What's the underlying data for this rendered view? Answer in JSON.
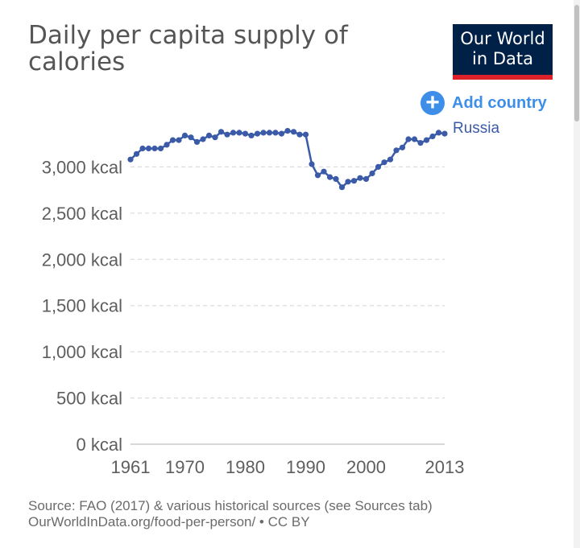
{
  "header": {
    "title": "Daily per capita supply of calories",
    "logo_line1": "Our World",
    "logo_line2": "in Data"
  },
  "controls": {
    "add_country_label": "Add country",
    "add_icon": "plus-circle-icon"
  },
  "footer": {
    "source_line": "Source: FAO (2017) & various historical sources (see Sources tab)",
    "url_line": "OurWorldInData.org/food-per-person/ • CC BY"
  },
  "colors": {
    "series": "#3b5ba8",
    "accent": "#3c8ee8",
    "logo_bg": "#002147",
    "logo_stripe": "#dd2129",
    "grid": "#dddddd"
  },
  "chart_data": {
    "type": "line",
    "title": "Daily per capita supply of calories",
    "xlabel": "",
    "ylabel": "",
    "xlim": [
      1961,
      2013
    ],
    "ylim": [
      0,
      3500
    ],
    "x_ticks": [
      {
        "value": 1961,
        "label": "1961"
      },
      {
        "value": 1970,
        "label": "1970"
      },
      {
        "value": 1980,
        "label": "1980"
      },
      {
        "value": 1990,
        "label": "1990"
      },
      {
        "value": 2000,
        "label": "2000"
      },
      {
        "value": 2013,
        "label": "2013"
      }
    ],
    "y_ticks": [
      {
        "value": 0,
        "label": "0 kcal"
      },
      {
        "value": 500,
        "label": "500 kcal"
      },
      {
        "value": 1000,
        "label": "1,000 kcal"
      },
      {
        "value": 1500,
        "label": "1,500 kcal"
      },
      {
        "value": 2000,
        "label": "2,000 kcal"
      },
      {
        "value": 2500,
        "label": "2,500 kcal"
      },
      {
        "value": 3000,
        "label": "3,000 kcal"
      }
    ],
    "grid": "horizontal-dashed",
    "legend": "end-of-line",
    "series": [
      {
        "name": "Russia",
        "x": [
          1961,
          1962,
          1963,
          1964,
          1965,
          1966,
          1967,
          1968,
          1969,
          1970,
          1971,
          1972,
          1973,
          1974,
          1975,
          1976,
          1977,
          1978,
          1979,
          1980,
          1981,
          1982,
          1983,
          1984,
          1985,
          1986,
          1987,
          1988,
          1989,
          1990,
          1991,
          1992,
          1993,
          1994,
          1995,
          1996,
          1997,
          1998,
          1999,
          2000,
          2001,
          2002,
          2003,
          2004,
          2005,
          2006,
          2007,
          2008,
          2009,
          2010,
          2011,
          2012,
          2013
        ],
        "values": [
          3080,
          3140,
          3200,
          3200,
          3200,
          3200,
          3240,
          3290,
          3290,
          3340,
          3320,
          3270,
          3300,
          3340,
          3320,
          3380,
          3350,
          3370,
          3370,
          3360,
          3340,
          3360,
          3370,
          3370,
          3370,
          3360,
          3390,
          3380,
          3350,
          3350,
          3030,
          2910,
          2950,
          2890,
          2870,
          2780,
          2840,
          2850,
          2880,
          2870,
          2930,
          3000,
          3050,
          3080,
          3180,
          3210,
          3300,
          3300,
          3260,
          3290,
          3330,
          3370,
          3360
        ]
      }
    ]
  }
}
